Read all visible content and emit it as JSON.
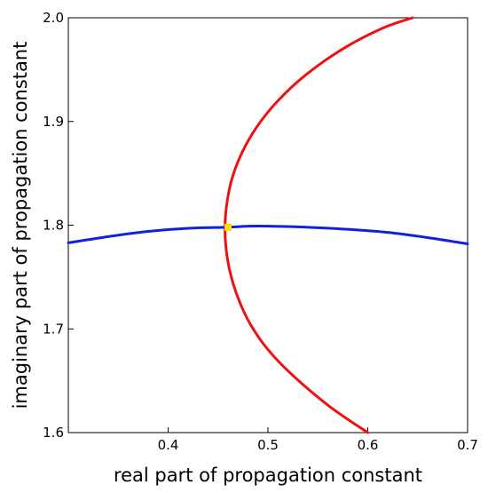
{
  "chart_data": {
    "type": "line",
    "title": "",
    "xlabel": "real part of propagation constant",
    "ylabel": "imaginary part of propagation constant",
    "xlim": [
      0.3,
      0.7
    ],
    "ylim": [
      1.6,
      2.0
    ],
    "x_ticks": [
      {
        "value": 0.4,
        "label": "0.4"
      },
      {
        "value": 0.5,
        "label": "0.5"
      },
      {
        "value": 0.6,
        "label": "0.6"
      },
      {
        "value": 0.7,
        "label": "0.7"
      }
    ],
    "y_ticks": [
      {
        "value": 1.6,
        "label": "1.6"
      },
      {
        "value": 1.7,
        "label": "1.7"
      },
      {
        "value": 1.8,
        "label": "1.8"
      },
      {
        "value": 1.9,
        "label": "1.9"
      },
      {
        "value": 2.0,
        "label": "2.0"
      }
    ],
    "grid": false,
    "series": [
      {
        "color": "#ee1111",
        "x": [
          0.6,
          0.562,
          0.525,
          0.5,
          0.482,
          0.47,
          0.462,
          0.458,
          0.457,
          0.459,
          0.464,
          0.474,
          0.489,
          0.51,
          0.538,
          0.575,
          0.615,
          0.645
        ],
        "y": [
          1.6,
          1.625,
          1.655,
          1.68,
          1.705,
          1.73,
          1.755,
          1.778,
          1.8,
          1.822,
          1.845,
          1.87,
          1.895,
          1.92,
          1.945,
          1.97,
          1.99,
          2.0
        ]
      },
      {
        "color": "#1122dd",
        "x": [
          0.3,
          0.34,
          0.38,
          0.42,
          0.46,
          0.48,
          0.5,
          0.54,
          0.58,
          0.62,
          0.66,
          0.7
        ],
        "y": [
          1.783,
          1.789,
          1.794,
          1.797,
          1.798,
          1.799,
          1.799,
          1.798,
          1.796,
          1.793,
          1.788,
          1.782
        ]
      }
    ],
    "annotations": [
      {
        "type": "point",
        "x": 0.46,
        "y": 1.798,
        "color": "#ffdd00"
      }
    ]
  }
}
